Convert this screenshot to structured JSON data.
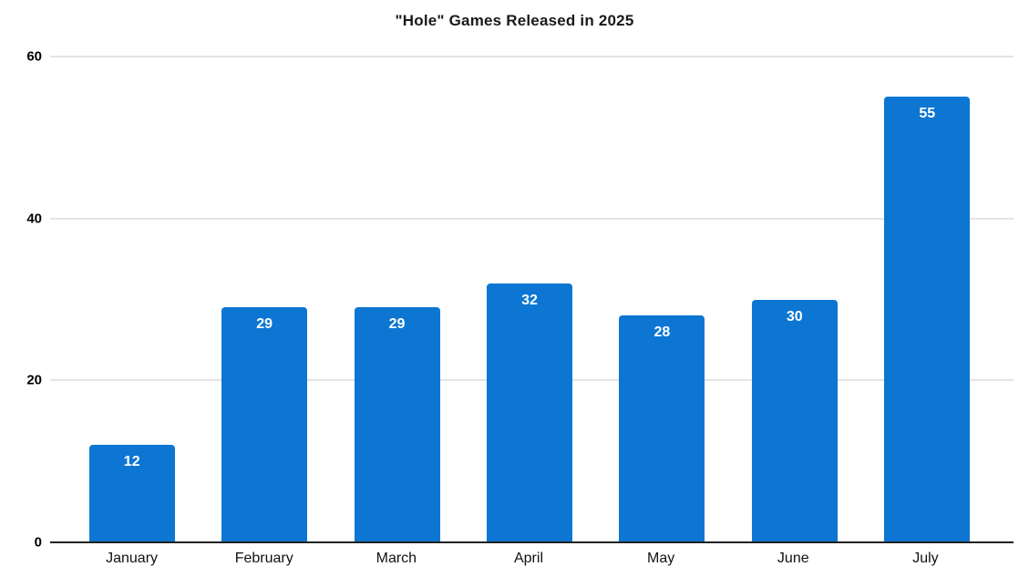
{
  "chart_data": {
    "type": "bar",
    "title": "\"Hole\" Games Released in 2025",
    "categories": [
      "January",
      "February",
      "March",
      "April",
      "May",
      "June",
      "July"
    ],
    "values": [
      12,
      29,
      29,
      32,
      28,
      30,
      55
    ],
    "xlabel": "",
    "ylabel": "",
    "ylim": [
      0,
      60
    ],
    "yticks": [
      0,
      20,
      40,
      60
    ],
    "grid": true,
    "legend_position": "none",
    "bar_value_labels_shown": true
  },
  "colors": {
    "background": "#ffffff",
    "bar": "#0d76d3",
    "bar_value_label": "#ffffff",
    "gridline": "#e4e4e4",
    "baseline": "#212121",
    "title_text": "#1a1a1a",
    "y_tick_text": "#000000",
    "x_tick_text": "#111111"
  }
}
